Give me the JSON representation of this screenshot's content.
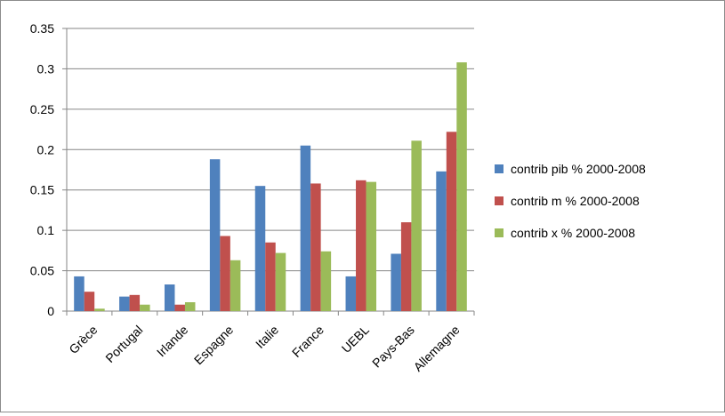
{
  "chart_data": {
    "type": "bar",
    "categories": [
      "Grèce",
      "Portugal",
      "Irlande",
      "Espagne",
      "Italie",
      "France",
      "UEBL",
      "Pays-Bas",
      "Allemagne"
    ],
    "series": [
      {
        "name": "contrib pib % 2000-2008",
        "color": "#4f81bd",
        "values": [
          0.043,
          0.018,
          0.033,
          0.188,
          0.155,
          0.205,
          0.043,
          0.071,
          0.173
        ]
      },
      {
        "name": "contrib m % 2000-2008",
        "color": "#c0504d",
        "values": [
          0.024,
          0.02,
          0.008,
          0.093,
          0.085,
          0.158,
          0.162,
          0.11,
          0.222
        ]
      },
      {
        "name": "contrib x % 2000-2008",
        "color": "#9bbb59",
        "values": [
          0.003,
          0.008,
          0.011,
          0.063,
          0.072,
          0.074,
          0.16,
          0.211,
          0.308
        ]
      }
    ],
    "ylim": [
      0,
      0.35
    ],
    "yticks": [
      "0",
      "0.05",
      "0.1",
      "0.15",
      "0.2",
      "0.25",
      "0.3",
      "0.35"
    ],
    "title": "",
    "xlabel": "",
    "ylabel": "",
    "grid": "horizontal",
    "legend_position": "right"
  }
}
